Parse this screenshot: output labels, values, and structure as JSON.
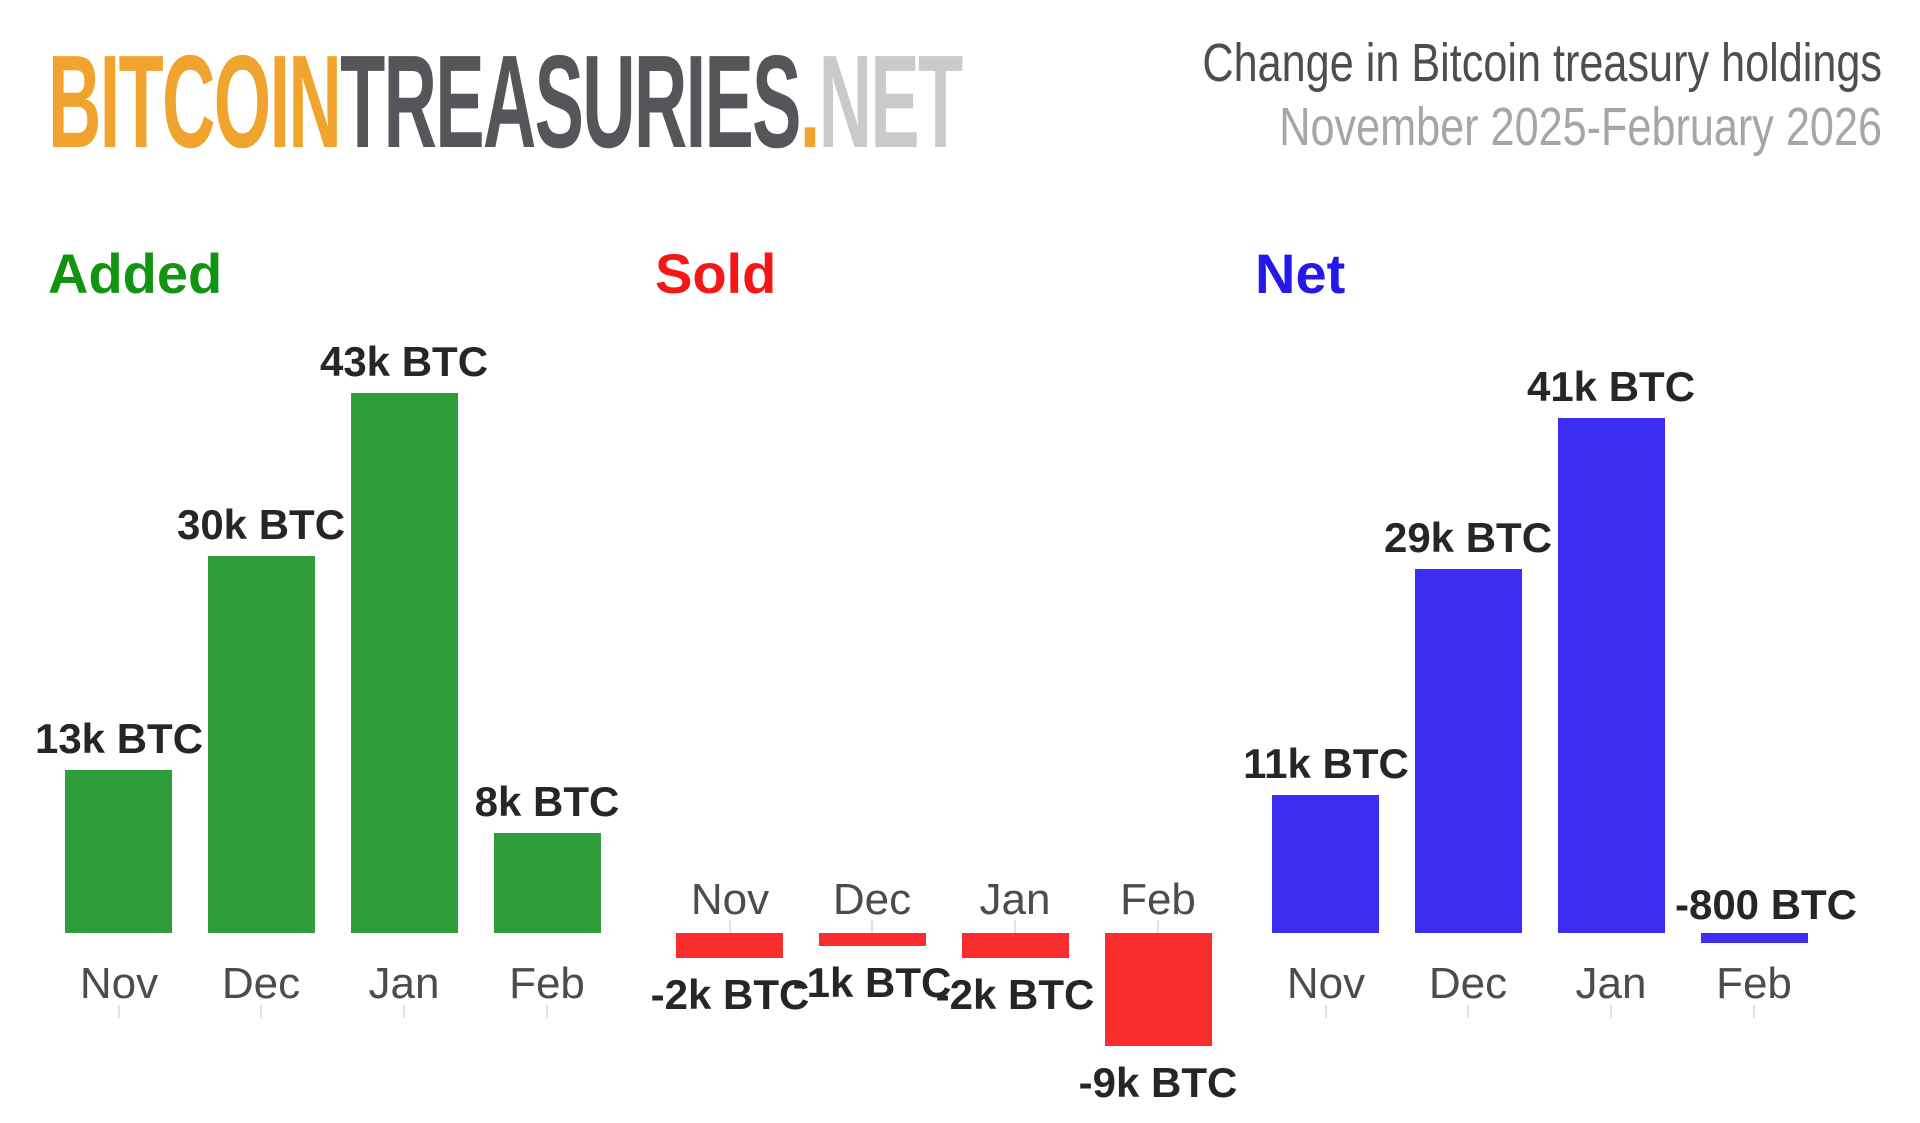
{
  "logo": {
    "bitcoin": "BITCOIN",
    "treasuries": "TREASURIES",
    "dot": ".",
    "net": "NET"
  },
  "header": {
    "title": "Change in Bitcoin treasury holdings",
    "subtitle": "November 2025-February 2026"
  },
  "colors": {
    "added_bar": "#2f9e3a",
    "added_title": "#119411",
    "sold_bar": "#fb2c2c",
    "sold_title": "#f51616",
    "net_bar": "#3b2ef1",
    "net_title": "#2617ea",
    "logo_orange": "#f0a42d",
    "logo_dark": "#54565a",
    "logo_light": "#c9cacc",
    "value_label": "#262626",
    "month_label": "#4c4c4c"
  },
  "chart_data": [
    {
      "type": "bar",
      "title": "Added",
      "categories": [
        "Nov",
        "Dec",
        "Jan",
        "Feb"
      ],
      "values_k_btc": [
        13,
        30,
        43,
        8
      ],
      "value_labels": [
        "13k BTC",
        "30k BTC",
        "43k BTC",
        "8k BTC"
      ],
      "bar_color": "#2f9e3a",
      "title_color": "#119411",
      "unit": "k BTC",
      "axes_visible": false,
      "grid": false
    },
    {
      "type": "bar",
      "title": "Sold",
      "categories": [
        "Nov",
        "Dec",
        "Jan",
        "Feb"
      ],
      "values_k_btc": [
        -2,
        -1,
        -2,
        -9
      ],
      "value_labels": [
        "-2k BTC",
        "-1k BTC",
        "-2k BTC",
        "-9k BTC"
      ],
      "bar_color": "#fb2c2c",
      "title_color": "#f51616",
      "unit": "k BTC",
      "axes_visible": false,
      "grid": false
    },
    {
      "type": "bar",
      "title": "Net",
      "categories": [
        "Nov",
        "Dec",
        "Jan",
        "Feb"
      ],
      "values_k_btc": [
        11,
        29,
        41,
        -0.8
      ],
      "value_labels": [
        "11k BTC",
        "29k BTC",
        "41k BTC",
        "-800 BTC"
      ],
      "bar_color": "#3b2ef1",
      "title_color": "#2617ea",
      "unit": "k BTC",
      "axes_visible": false,
      "grid": false
    }
  ]
}
